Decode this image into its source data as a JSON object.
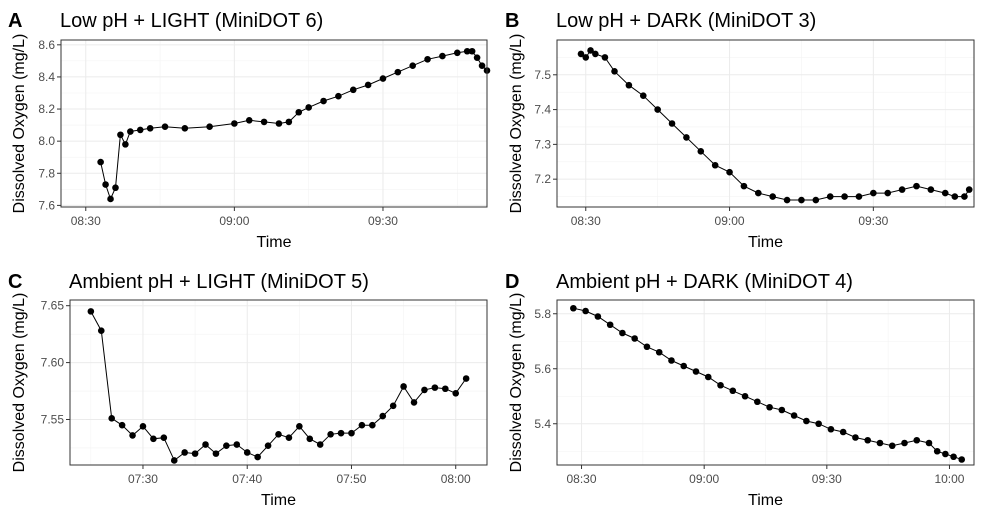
{
  "chart_data": [
    {
      "tag": "A",
      "type": "line",
      "title": "Low pH + LIGHT (MiniDOT 6)",
      "xlabel": "Time",
      "ylabel": "Dissolved Oxygen (mg/L)",
      "xlim": [
        "08:25",
        "09:51"
      ],
      "ylim": [
        7.59,
        8.63
      ],
      "xticks": [
        "08:30",
        "09:00",
        "09:30"
      ],
      "yticks": [
        7.6,
        7.8,
        8.0,
        8.2,
        8.4,
        8.6
      ],
      "ytick_labels": [
        "7.6",
        "7.8",
        "8.0",
        "8.2",
        "8.4",
        "8.6"
      ],
      "points": [
        [
          "08:33",
          7.87
        ],
        [
          "08:34",
          7.73
        ],
        [
          "08:35",
          7.64
        ],
        [
          "08:36",
          7.71
        ],
        [
          "08:37",
          8.04
        ],
        [
          "08:38",
          7.98
        ],
        [
          "08:39",
          8.06
        ],
        [
          "08:41",
          8.07
        ],
        [
          "08:43",
          8.08
        ],
        [
          "08:46",
          8.09
        ],
        [
          "08:50",
          8.08
        ],
        [
          "08:55",
          8.09
        ],
        [
          "09:00",
          8.11
        ],
        [
          "09:03",
          8.13
        ],
        [
          "09:06",
          8.12
        ],
        [
          "09:09",
          8.11
        ],
        [
          "09:11",
          8.12
        ],
        [
          "09:13",
          8.18
        ],
        [
          "09:15",
          8.21
        ],
        [
          "09:18",
          8.25
        ],
        [
          "09:21",
          8.28
        ],
        [
          "09:24",
          8.32
        ],
        [
          "09:27",
          8.35
        ],
        [
          "09:30",
          8.39
        ],
        [
          "09:33",
          8.43
        ],
        [
          "09:36",
          8.47
        ],
        [
          "09:39",
          8.51
        ],
        [
          "09:42",
          8.53
        ],
        [
          "09:45",
          8.55
        ],
        [
          "09:47",
          8.56
        ],
        [
          "09:48",
          8.56
        ],
        [
          "09:49",
          8.52
        ],
        [
          "09:50",
          8.47
        ],
        [
          "09:51",
          8.44
        ]
      ]
    },
    {
      "tag": "B",
      "type": "line",
      "title": "Low pH + DARK (MiniDOT 3)",
      "xlabel": "Time",
      "ylabel": "Dissolved Oxygen (mg/L)",
      "xlim": [
        "08:24",
        "09:51"
      ],
      "ylim": [
        7.12,
        7.6
      ],
      "xticks": [
        "08:30",
        "09:00",
        "09:30"
      ],
      "yticks": [
        7.2,
        7.3,
        7.4,
        7.5
      ],
      "ytick_labels": [
        "7.2",
        "7.3",
        "7.4",
        "7.5"
      ],
      "points": [
        [
          "08:29",
          7.56
        ],
        [
          "08:30",
          7.55
        ],
        [
          "08:31",
          7.57
        ],
        [
          "08:32",
          7.56
        ],
        [
          "08:34",
          7.55
        ],
        [
          "08:36",
          7.51
        ],
        [
          "08:39",
          7.47
        ],
        [
          "08:42",
          7.44
        ],
        [
          "08:45",
          7.4
        ],
        [
          "08:48",
          7.36
        ],
        [
          "08:51",
          7.32
        ],
        [
          "08:54",
          7.28
        ],
        [
          "08:57",
          7.24
        ],
        [
          "09:00",
          7.22
        ],
        [
          "09:03",
          7.18
        ],
        [
          "09:06",
          7.16
        ],
        [
          "09:09",
          7.15
        ],
        [
          "09:12",
          7.14
        ],
        [
          "09:15",
          7.14
        ],
        [
          "09:18",
          7.14
        ],
        [
          "09:21",
          7.15
        ],
        [
          "09:24",
          7.15
        ],
        [
          "09:27",
          7.15
        ],
        [
          "09:30",
          7.16
        ],
        [
          "09:33",
          7.16
        ],
        [
          "09:36",
          7.17
        ],
        [
          "09:39",
          7.18
        ],
        [
          "09:42",
          7.17
        ],
        [
          "09:45",
          7.16
        ],
        [
          "09:47",
          7.15
        ],
        [
          "09:49",
          7.15
        ],
        [
          "09:50",
          7.17
        ]
      ]
    },
    {
      "tag": "C",
      "type": "line",
      "title": "Ambient pH + LIGHT (MiniDOT 5)",
      "xlabel": "Time",
      "ylabel": "Dissolved Oxygen (mg/L)",
      "xlim": [
        "07:23",
        "08:03"
      ],
      "ylim": [
        7.51,
        7.655
      ],
      "xticks": [
        "07:30",
        "07:40",
        "07:50",
        "08:00"
      ],
      "yticks": [
        7.55,
        7.6,
        7.65
      ],
      "ytick_labels": [
        "7.55",
        "7.60",
        "7.65"
      ],
      "points": [
        [
          "07:25",
          7.645
        ],
        [
          "07:26",
          7.628
        ],
        [
          "07:27",
          7.551
        ],
        [
          "07:28",
          7.545
        ],
        [
          "07:29",
          7.536
        ],
        [
          "07:30",
          7.544
        ],
        [
          "07:31",
          7.533
        ],
        [
          "07:32",
          7.534
        ],
        [
          "07:33",
          7.514
        ],
        [
          "07:34",
          7.521
        ],
        [
          "07:35",
          7.52
        ],
        [
          "07:36",
          7.528
        ],
        [
          "07:37",
          7.52
        ],
        [
          "07:38",
          7.527
        ],
        [
          "07:39",
          7.528
        ],
        [
          "07:40",
          7.521
        ],
        [
          "07:41",
          7.517
        ],
        [
          "07:42",
          7.527
        ],
        [
          "07:43",
          7.537
        ],
        [
          "07:44",
          7.534
        ],
        [
          "07:45",
          7.544
        ],
        [
          "07:46",
          7.533
        ],
        [
          "07:47",
          7.528
        ],
        [
          "07:48",
          7.537
        ],
        [
          "07:49",
          7.538
        ],
        [
          "07:50",
          7.538
        ],
        [
          "07:51",
          7.545
        ],
        [
          "07:52",
          7.545
        ],
        [
          "07:53",
          7.553
        ],
        [
          "07:54",
          7.562
        ],
        [
          "07:55",
          7.579
        ],
        [
          "07:56",
          7.565
        ],
        [
          "07:57",
          7.576
        ],
        [
          "07:58",
          7.578
        ],
        [
          "07:59",
          7.577
        ],
        [
          "08:00",
          7.573
        ],
        [
          "08:01",
          7.586
        ]
      ]
    },
    {
      "tag": "D",
      "type": "line",
      "title": "Ambient pH + DARK (MiniDOT 4)",
      "xlabel": "Time",
      "ylabel": "Dissolved Oxygen (mg/L)",
      "xlim": [
        "08:24",
        "10:06"
      ],
      "ylim": [
        5.25,
        5.85
      ],
      "xticks": [
        "08:30",
        "09:00",
        "09:30",
        "10:00"
      ],
      "yticks": [
        5.4,
        5.6,
        5.8
      ],
      "ytick_labels": [
        "5.4",
        "5.6",
        "5.8"
      ],
      "points": [
        [
          "08:28",
          5.82
        ],
        [
          "08:31",
          5.81
        ],
        [
          "08:34",
          5.79
        ],
        [
          "08:37",
          5.76
        ],
        [
          "08:40",
          5.73
        ],
        [
          "08:43",
          5.71
        ],
        [
          "08:46",
          5.68
        ],
        [
          "08:49",
          5.66
        ],
        [
          "08:52",
          5.63
        ],
        [
          "08:55",
          5.61
        ],
        [
          "08:58",
          5.59
        ],
        [
          "09:01",
          5.57
        ],
        [
          "09:04",
          5.54
        ],
        [
          "09:07",
          5.52
        ],
        [
          "09:10",
          5.5
        ],
        [
          "09:13",
          5.48
        ],
        [
          "09:16",
          5.46
        ],
        [
          "09:19",
          5.45
        ],
        [
          "09:22",
          5.43
        ],
        [
          "09:25",
          5.41
        ],
        [
          "09:28",
          5.4
        ],
        [
          "09:31",
          5.38
        ],
        [
          "09:34",
          5.37
        ],
        [
          "09:37",
          5.35
        ],
        [
          "09:40",
          5.34
        ],
        [
          "09:43",
          5.33
        ],
        [
          "09:46",
          5.32
        ],
        [
          "09:49",
          5.33
        ],
        [
          "09:52",
          5.34
        ],
        [
          "09:55",
          5.33
        ],
        [
          "09:57",
          5.3
        ],
        [
          "09:59",
          5.29
        ],
        [
          "10:01",
          5.28
        ],
        [
          "10:03",
          5.27
        ]
      ]
    }
  ]
}
